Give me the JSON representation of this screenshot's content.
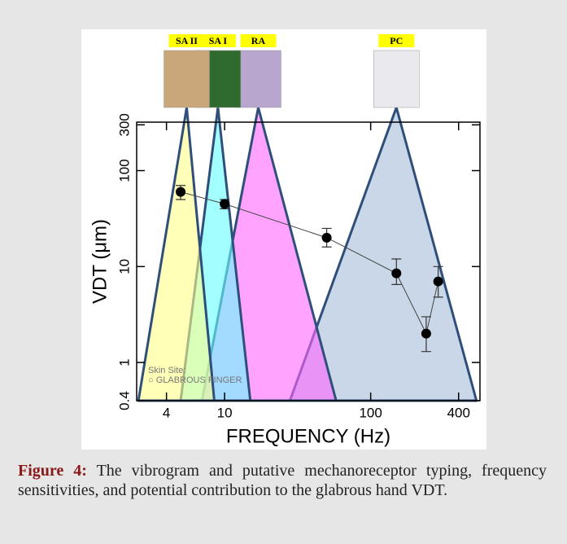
{
  "chart_data": {
    "type": "vibrogram",
    "xlabel": "FREQUENCY (Hz)",
    "ylabel": "VDT (μm)",
    "xscale": "log",
    "yscale": "log",
    "xlim": [
      2.5,
      560
    ],
    "ylim": [
      0.4,
      320
    ],
    "xticks": [
      4,
      10,
      100,
      400
    ],
    "yticks": [
      0.4,
      1,
      10,
      100,
      300
    ],
    "x": [
      5,
      10,
      50,
      150,
      240,
      290
    ],
    "values": [
      60,
      45,
      20,
      8.5,
      2,
      7
    ],
    "errors": [
      [
        50,
        70
      ],
      [
        40,
        50
      ],
      [
        16,
        25
      ],
      [
        6.5,
        12
      ],
      [
        1.3,
        3
      ],
      [
        4.8,
        10
      ]
    ],
    "color": "#000000",
    "receptors": [
      {
        "name": "PC",
        "color": "#a6bcd8",
        "range": [
          28,
          150,
          530
        ]
      },
      {
        "name": "RA",
        "color": "#ff66ff",
        "range": [
          7,
          17,
          58
        ]
      },
      {
        "name": "SA I",
        "color": "#66ffff",
        "range": [
          5,
          9,
          15
        ]
      },
      {
        "name": "SA II",
        "color": "#ffff88",
        "range": [
          2.57,
          5.5,
          8.5
        ]
      }
    ],
    "annotations": [
      "Skin Site:",
      "○ GLABROUS FINGER"
    ]
  },
  "caption": {
    "label": "Figure 4:",
    "text": "The vibrogram and putative mechanoreceptor typing, frequency sensitivities, and potential contribution to the glabrous hand VDT."
  }
}
